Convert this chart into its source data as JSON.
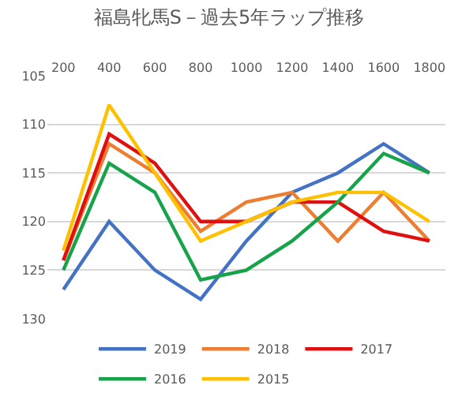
{
  "chart_data": {
    "type": "line",
    "title": "福島牝馬S－過去5年ラップ推移",
    "categories": [
      "200",
      "400",
      "600",
      "800",
      "1000",
      "1200",
      "1400",
      "1600",
      "1800"
    ],
    "series": [
      {
        "name": "2019",
        "color": "#4472c4",
        "values": [
          127,
          120,
          125,
          128,
          122,
          117,
          115,
          112,
          115
        ]
      },
      {
        "name": "2018",
        "color": "#ed7d31",
        "values": [
          124,
          112,
          115,
          121,
          118,
          117,
          122,
          117,
          122
        ]
      },
      {
        "name": "2017",
        "color": "#e01010",
        "values": [
          124,
          111,
          114,
          120,
          120,
          118,
          118,
          121,
          122
        ]
      },
      {
        "name": "2016",
        "color": "#16a34a",
        "values": [
          125,
          114,
          117,
          126,
          125,
          122,
          118,
          113,
          115
        ]
      },
      {
        "name": "2015",
        "color": "#ffc000",
        "values": [
          123,
          108,
          115,
          122,
          120,
          118,
          117,
          117,
          120
        ]
      }
    ],
    "ylim": [
      130,
      105
    ],
    "yticks": [
      105,
      110,
      115,
      120,
      125,
      130
    ],
    "grid": "y",
    "legend": "bottom",
    "marker": "none",
    "line_style": "solid"
  }
}
